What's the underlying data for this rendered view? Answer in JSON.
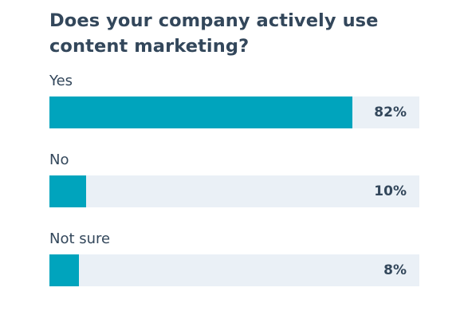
{
  "chart_data": {
    "type": "bar",
    "orientation": "horizontal",
    "title": "Does your company actively use content marketing?",
    "categories": [
      "Yes",
      "No",
      "Not sure"
    ],
    "values": [
      82,
      10,
      8
    ],
    "value_labels": [
      "82%",
      "10%",
      "8%"
    ],
    "xlim": [
      0,
      100
    ],
    "unit": "%",
    "grid": false,
    "legend": "none",
    "bar_color": "#00a4bd",
    "track_color": "#eaf0f6"
  }
}
